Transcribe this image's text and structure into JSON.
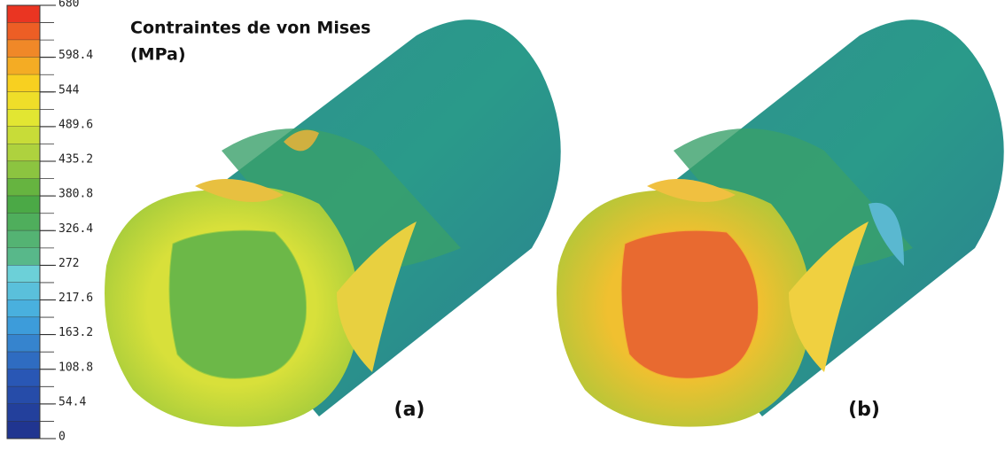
{
  "title": {
    "line1": "Contraintes de von Mises",
    "line2": "(MPa)"
  },
  "colorbar": {
    "range": [
      0,
      680
    ],
    "ticks": [
      680,
      598.4,
      544,
      489.6,
      435.2,
      380.8,
      326.4,
      272,
      217.6,
      163.2,
      108.8,
      54.4,
      0
    ]
  },
  "panels": [
    {
      "label": "(a)"
    },
    {
      "label": "(b)"
    }
  ]
}
